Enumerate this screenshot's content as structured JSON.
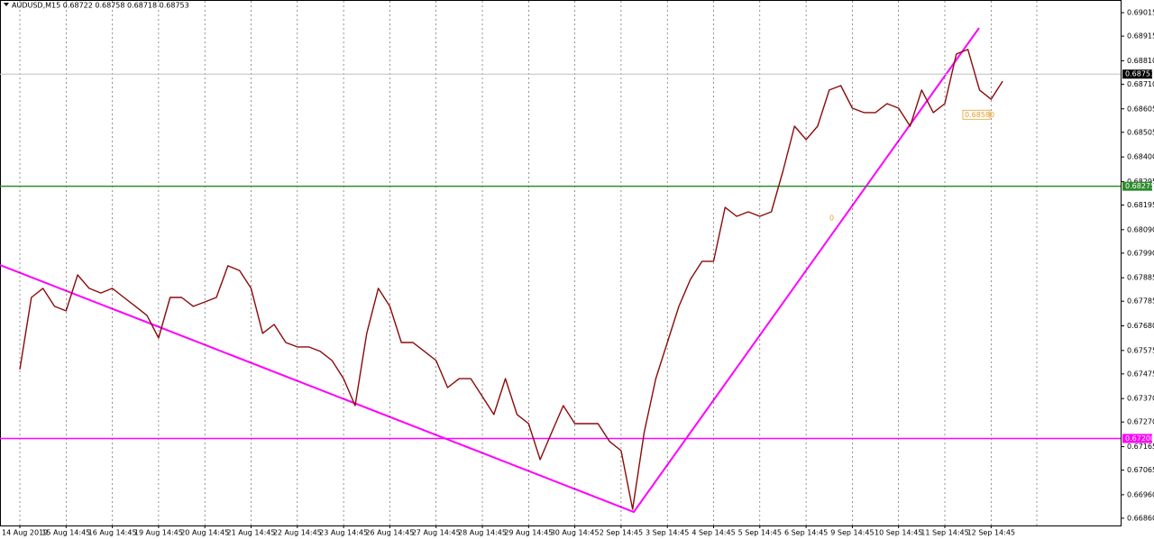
{
  "chart_data": {
    "type": "line",
    "title": "AUDUSD,M15  0.68722 0.68758 0.68718 0.68753",
    "categories": [
      "14 Aug 2019",
      null,
      null,
      null,
      "15 Aug 14:45",
      null,
      null,
      null,
      "16 Aug 14:45",
      null,
      null,
      null,
      "19 Aug 14:45",
      null,
      null,
      null,
      "20 Aug 14:45",
      null,
      null,
      null,
      "21 Aug 14:45",
      null,
      null,
      null,
      "22 Aug 14:45",
      null,
      null,
      null,
      "23 Aug 14:45",
      null,
      null,
      null,
      "26 Aug 14:45",
      null,
      null,
      null,
      "27 Aug 14:45",
      null,
      null,
      null,
      "28 Aug 14:45",
      null,
      null,
      null,
      "29 Aug 14:45",
      null,
      null,
      null,
      "30 Aug 14:45",
      null,
      null,
      null,
      "2 Sep 14:45",
      null,
      null,
      null,
      "3 Sep 14:45",
      null,
      null,
      null,
      "4 Sep 14:45",
      null,
      null,
      null,
      "5 Sep 14:45",
      null,
      null,
      null,
      "6 Sep 14:45",
      null,
      null,
      null,
      "9 Sep 14:45",
      null,
      null,
      null,
      "10 Sep 14:45",
      null,
      null,
      null,
      "11 Sep 14:45",
      null,
      null,
      null,
      "12 Sep 14:45",
      null
    ],
    "values": [
      0.67494,
      0.67801,
      0.6784,
      0.67763,
      0.67744,
      0.67897,
      0.6784,
      0.6782,
      0.6784,
      0.67801,
      0.67763,
      0.67724,
      0.67628,
      0.67801,
      0.67801,
      0.67763,
      0.67782,
      0.67801,
      0.67936,
      0.67916,
      0.6784,
      0.67648,
      0.67686,
      0.67609,
      0.6759,
      0.6759,
      0.67571,
      0.67532,
      0.67455,
      0.6734,
      0.67648,
      0.6784,
      0.67763,
      0.67609,
      0.67609,
      0.67571,
      0.67532,
      0.67417,
      0.67455,
      0.67455,
      0.67379,
      0.67302,
      0.67455,
      0.67302,
      0.67263,
      0.6711,
      0.67225,
      0.6734,
      0.67263,
      0.67263,
      0.67263,
      0.67187,
      0.67148,
      0.66898,
      0.67225,
      0.67455,
      0.67609,
      0.67763,
      0.67878,
      0.67955,
      0.67955,
      0.68185,
      0.68147,
      0.68166,
      0.68147,
      0.68166,
      0.68339,
      0.68531,
      0.68474,
      0.68531,
      0.68685,
      0.68704,
      0.68608,
      0.68589,
      0.68589,
      0.68627,
      0.68608,
      0.68531,
      0.68685,
      0.68589,
      0.68627,
      0.68839,
      0.68858,
      0.68685,
      0.68646,
      0.68723
    ],
    "color": "#8b0a0a",
    "ylim": [
      0.66829,
      0.69069
    ],
    "yticks": [
      0.69015,
      0.68915,
      {
        "value": 0.6881,
        "label": "0.68810"
      },
      {
        "value": 0.6871,
        "label": "0.68710"
      },
      0.68605,
      0.68505,
      {
        "value": 0.684,
        "label": "0.68400"
      },
      0.68295,
      0.68195,
      {
        "value": 0.6809,
        "label": "0.68090"
      },
      {
        "value": 0.6799,
        "label": "0.67990"
      },
      0.67885,
      0.67785,
      {
        "value": 0.6768,
        "label": "0.67680"
      },
      0.67575,
      0.67475,
      {
        "value": 0.6737,
        "label": "0.67370"
      },
      {
        "value": 0.6727,
        "label": "0.67270"
      },
      0.67165,
      0.67065,
      {
        "value": 0.6696,
        "label": "0.66960"
      },
      {
        "value": 0.6686,
        "label": "0.66860"
      }
    ],
    "grid": true,
    "current_price": {
      "value": 0.68753,
      "color": "#c0c0c0"
    },
    "levels": [
      {
        "value": 0.68275,
        "color": "#2e8b2e"
      },
      {
        "value": 0.672,
        "label": "0.67200",
        "color": "#ff00ff"
      }
    ],
    "annotations": [
      {
        "value": 0.6858,
        "label": "0.68580"
      },
      {
        "text": "0"
      }
    ]
  }
}
